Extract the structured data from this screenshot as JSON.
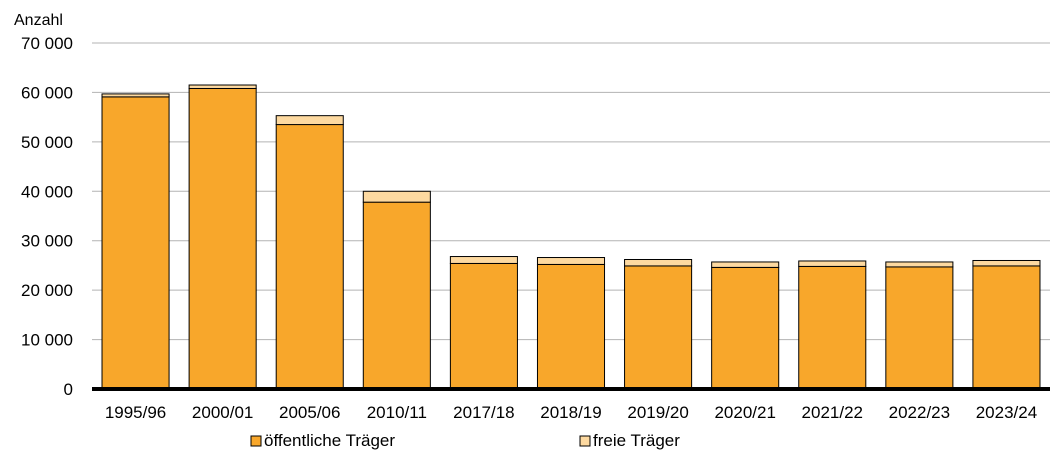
{
  "chart_data": {
    "type": "bar",
    "stacked": true,
    "ylabel": "Anzahl",
    "ylim": [
      0,
      70000
    ],
    "yticks": [
      0,
      10000,
      20000,
      30000,
      40000,
      50000,
      60000,
      70000
    ],
    "ytick_labels": [
      "0",
      "10 000",
      "20 000",
      "30 000",
      "40 000",
      "50 000",
      "60 000",
      "70 000"
    ],
    "grid": true,
    "legend_position": "bottom",
    "categories": [
      "1995/96",
      "2000/01",
      "2005/06",
      "2010/11",
      "2017/18",
      "2018/19",
      "2019/20",
      "2020/21",
      "2021/22",
      "2022/23",
      "2023/24"
    ],
    "series": [
      {
        "name": "öffentliche Träger",
        "color": "#F8A72B",
        "values": [
          59100,
          60800,
          53500,
          37800,
          25400,
          25200,
          24900,
          24600,
          24800,
          24700,
          24900
        ]
      },
      {
        "name": "freie Träger",
        "color": "#FDD9A0",
        "values": [
          600,
          700,
          1800,
          2200,
          1400,
          1400,
          1300,
          1100,
          1100,
          1000,
          1100
        ]
      }
    ]
  }
}
